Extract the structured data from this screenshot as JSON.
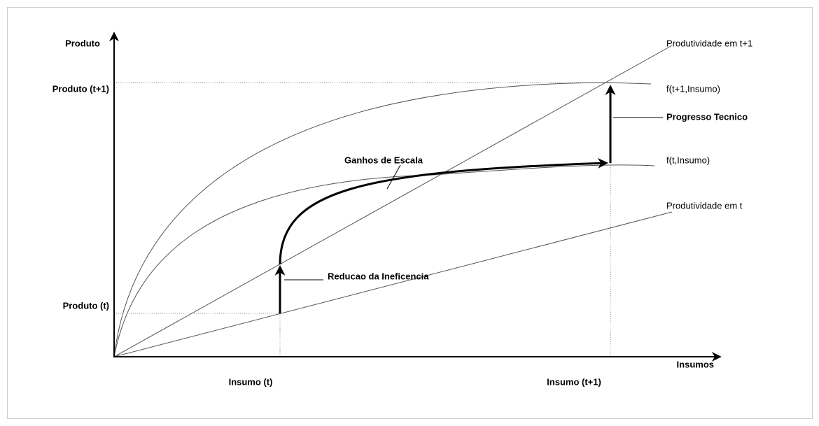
{
  "axes": {
    "y_label": "Produto",
    "x_label": "Insumos"
  },
  "y_marks": [
    "Produto (t+1)",
    "Produto (t)"
  ],
  "x_marks": [
    "Insumo (t)",
    "Insumo (t+1)"
  ],
  "curves": {
    "productivity_t1": "Produtividade em t+1",
    "f_t1": "f(t+1,Insumo)",
    "f_t": "f(t,Insumo)",
    "productivity_t": "Produtividade em t"
  },
  "annotations": {
    "progress": "Progresso Tecnico",
    "scale": "Ganhos de Escala",
    "inefficiency": "Reducao da Ineficencia"
  }
}
